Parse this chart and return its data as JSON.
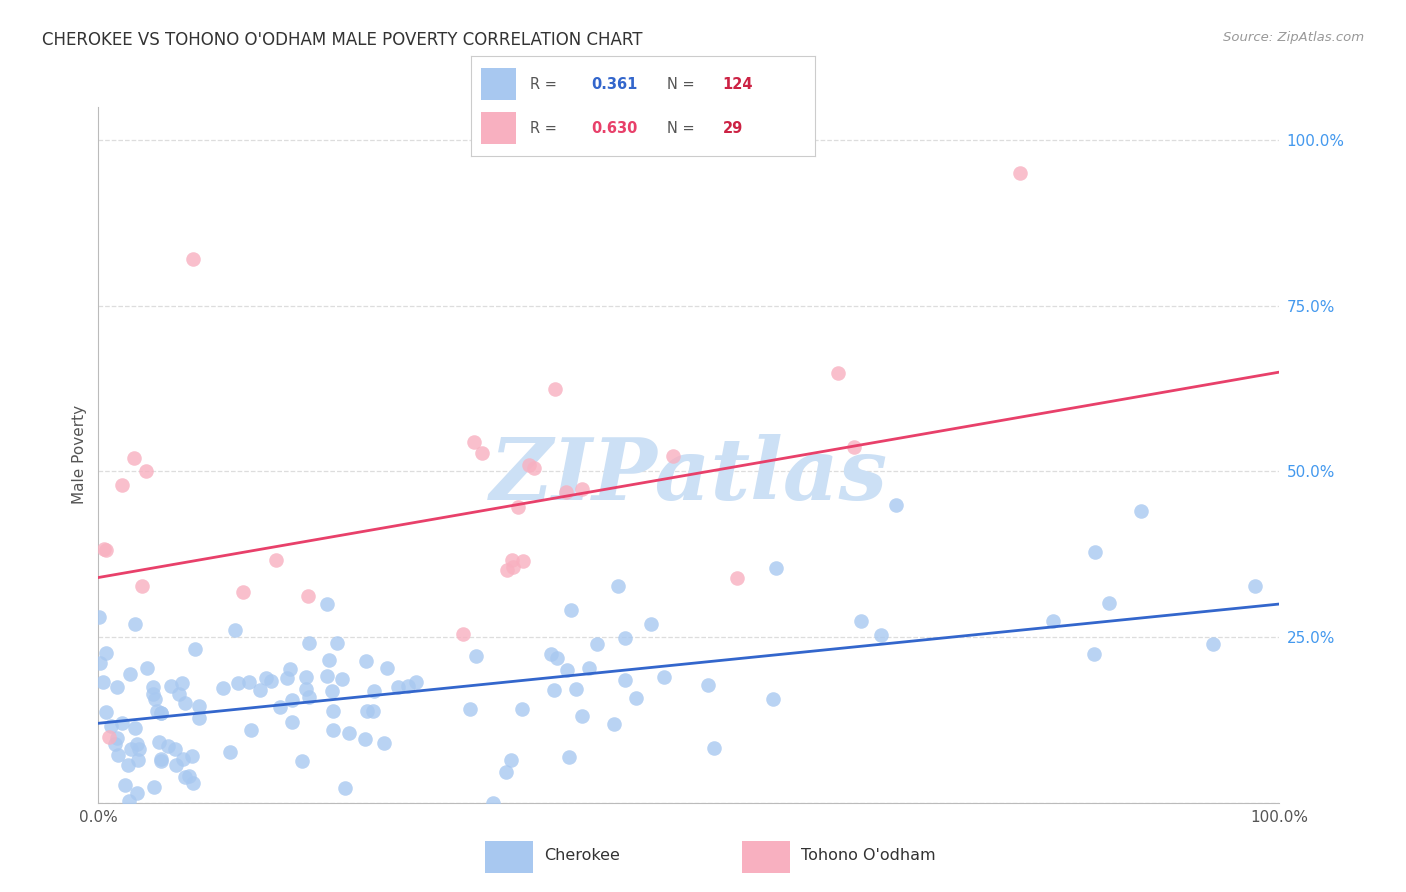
{
  "title": "CHEROKEE VS TOHONO O'ODHAM MALE POVERTY CORRELATION CHART",
  "source": "Source: ZipAtlas.com",
  "ylabel": "Male Poverty",
  "cherokee_R": 0.361,
  "cherokee_N": 124,
  "tohono_R": 0.63,
  "tohono_N": 29,
  "cherokee_scatter_color": "#a8c8f0",
  "tohono_scatter_color": "#f8b0c0",
  "cherokee_line_color": "#3366cc",
  "tohono_line_color": "#e8406a",
  "background_color": "#ffffff",
  "grid_color": "#dddddd",
  "title_color": "#333333",
  "right_tick_color": "#4499ee",
  "watermark_color": "#cce0f5",
  "watermark_text": "ZIPatlas",
  "legend_R_N_color": "#3366cc",
  "legend_N_val_color": "#cc2244",
  "cherokee_line_intercept": 0.12,
  "cherokee_line_slope": 0.18,
  "tohono_line_intercept": 0.34,
  "tohono_line_slope": 0.31
}
